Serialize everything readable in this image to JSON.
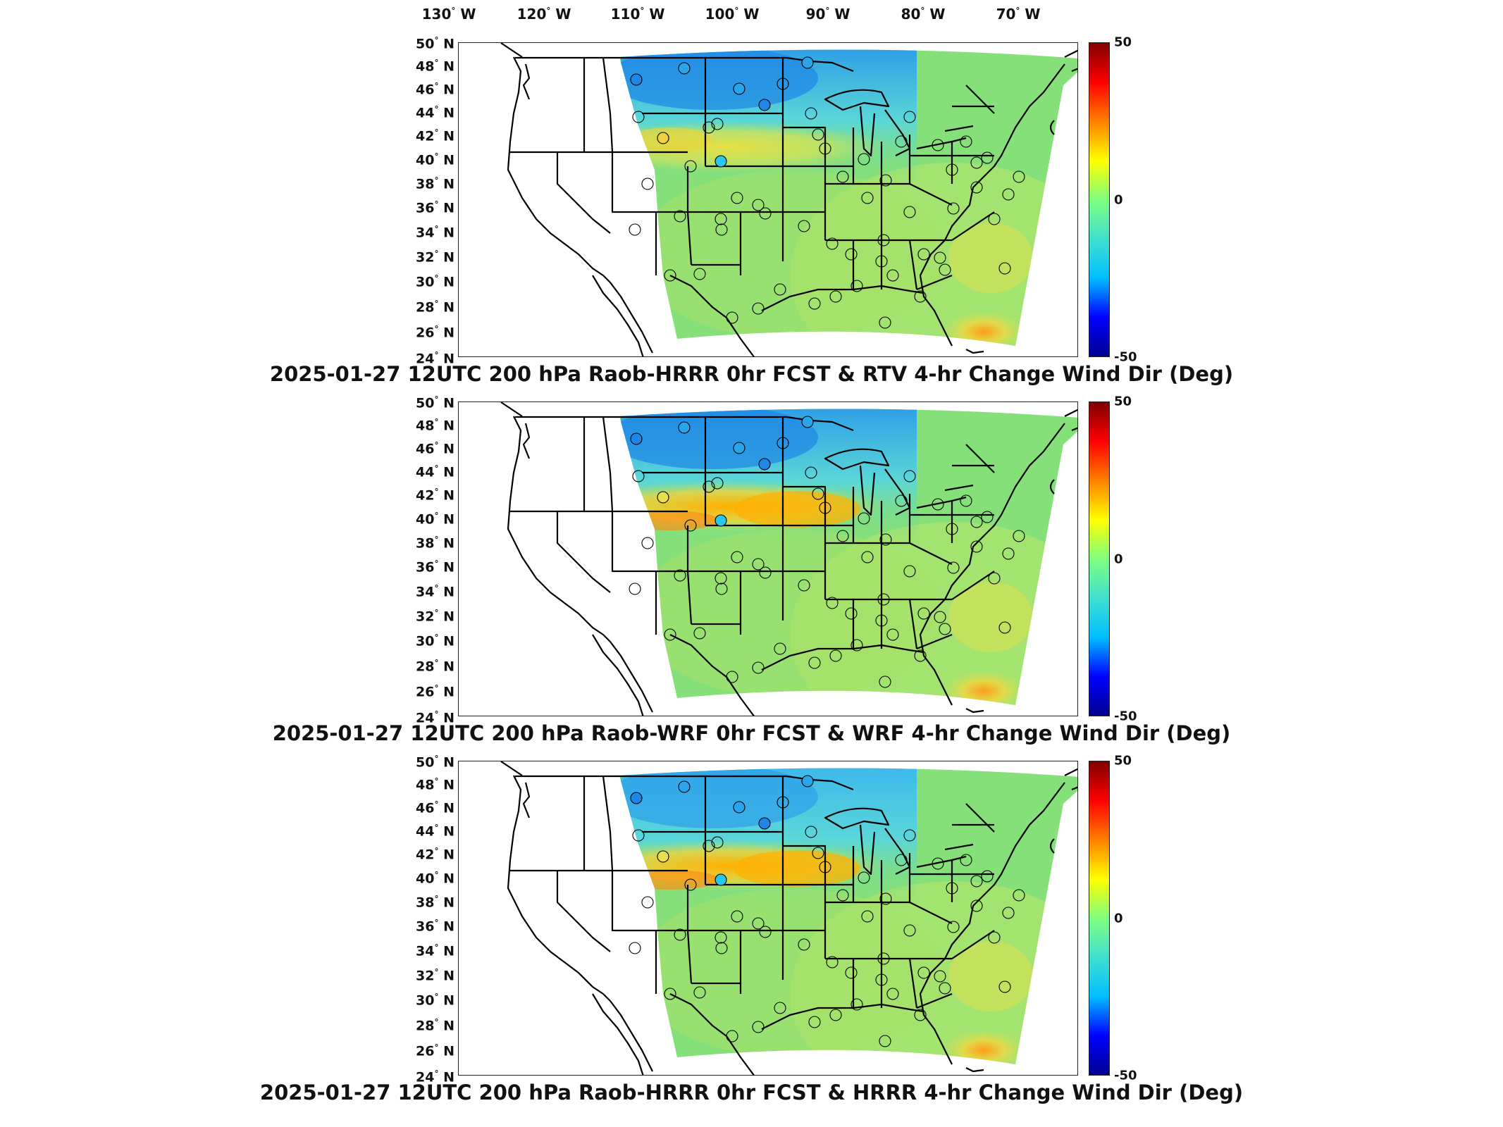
{
  "longitude_labels": [
    {
      "deg": "130",
      "dir": "W"
    },
    {
      "deg": "120",
      "dir": "W"
    },
    {
      "deg": "110",
      "dir": "W"
    },
    {
      "deg": "100",
      "dir": "W"
    },
    {
      "deg": "90",
      "dir": "W"
    },
    {
      "deg": "80",
      "dir": "W"
    },
    {
      "deg": "70",
      "dir": "W"
    }
  ],
  "latitude_labels": [
    {
      "deg": "50",
      "dir": "N"
    },
    {
      "deg": "48",
      "dir": "N"
    },
    {
      "deg": "46",
      "dir": "N"
    },
    {
      "deg": "44",
      "dir": "N"
    },
    {
      "deg": "42",
      "dir": "N"
    },
    {
      "deg": "40",
      "dir": "N"
    },
    {
      "deg": "38",
      "dir": "N"
    },
    {
      "deg": "36",
      "dir": "N"
    },
    {
      "deg": "34",
      "dir": "N"
    },
    {
      "deg": "32",
      "dir": "N"
    },
    {
      "deg": "30",
      "dir": "N"
    },
    {
      "deg": "28",
      "dir": "N"
    },
    {
      "deg": "26",
      "dir": "N"
    },
    {
      "deg": "24",
      "dir": "N"
    }
  ],
  "colorbar": {
    "max": "50",
    "mid": "0",
    "min": "-50",
    "colormap": [
      "#00008f",
      "#0000ff",
      "#00bfff",
      "#40e0d0",
      "#7fff7f",
      "#ffff00",
      "#ff8000",
      "#ff0000",
      "#800000"
    ]
  },
  "colors": {
    "positive_band": "#ffb000",
    "negative_band": "#1e7fe0",
    "background_field": "#7ee07a"
  },
  "panels": [
    {
      "title": "2025-01-27 12UTC 200 hPa Raob-HRRR 0hr FCST & RTV 4-hr Change Wind Dir (Deg)",
      "north_anomaly": -25,
      "central_plains_anomaly": 5,
      "station_count": 60
    },
    {
      "title": "2025-01-27 12UTC 200 hPa Raob-WRF 0hr FCST & WRF 4-hr Change Wind Dir (Deg)",
      "north_anomaly": -25,
      "central_plains_anomaly": 18,
      "station_count": 60
    },
    {
      "title": "2025-01-27 12UTC 200 hPa Raob-HRRR 0hr FCST & HRRR 4-hr Change Wind Dir (Deg)",
      "north_anomaly": -22,
      "central_plains_anomaly": 18,
      "station_count": 60
    }
  ]
}
